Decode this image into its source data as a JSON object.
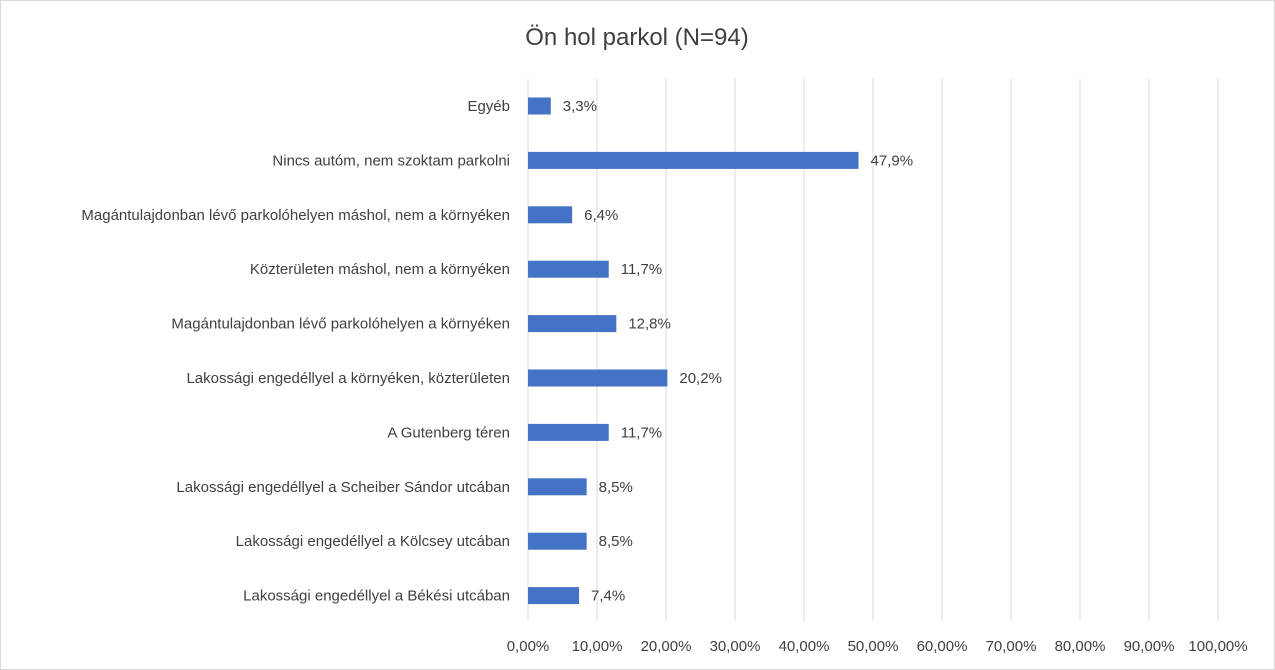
{
  "chart_data": {
    "type": "bar",
    "orientation": "horizontal",
    "title": "Ön hol parkol (N=94)",
    "categories": [
      "Egyéb",
      "Nincs autóm, nem szoktam parkolni",
      "Magántulajdonban lévő parkolóhelyen máshol, nem a környéken",
      "Közterületen máshol, nem a környéken",
      "Magántulajdonban lévő parkolóhelyen a környéken",
      "Lakossági engedéllyel a környéken, közterületen",
      "A Gutenberg téren",
      "Lakossági engedéllyel a Scheiber Sándor utcában",
      "Lakossági engedéllyel a Kölcsey utcában",
      "Lakossági engedéllyel a Békési utcában"
    ],
    "values": [
      3.3,
      47.9,
      6.4,
      11.7,
      12.8,
      20.2,
      11.7,
      8.5,
      8.5,
      7.4
    ],
    "value_labels": [
      "3,3%",
      "47,9%",
      "6,4%",
      "11,7%",
      "12,8%",
      "20,2%",
      "11,7%",
      "8,5%",
      "8,5%",
      "7,4%"
    ],
    "x_ticks": [
      0,
      10,
      20,
      30,
      40,
      50,
      60,
      70,
      80,
      90,
      100
    ],
    "x_tick_labels": [
      "0,00%",
      "10,00%",
      "20,00%",
      "30,00%",
      "40,00%",
      "50,00%",
      "60,00%",
      "70,00%",
      "80,00%",
      "90,00%",
      "100,00%"
    ],
    "xlim": [
      0,
      100
    ],
    "xlabel": "",
    "ylabel": "",
    "grid": "vertical",
    "legend": "none",
    "bar_color": "#4472c4"
  }
}
